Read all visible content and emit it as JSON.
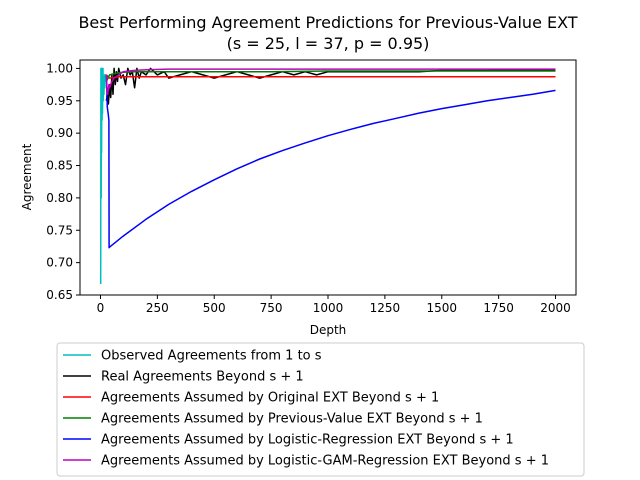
{
  "chart_data": {
    "type": "line",
    "title": "Best Performing Agreement Predictions for Previous-Value EXT",
    "subtitle": "(s = 25, l = 37, p = 0.95)",
    "xlabel": "Depth",
    "ylabel": "Agreement",
    "xlim": [
      -90,
      2090
    ],
    "ylim": [
      0.65,
      1.013
    ],
    "xticks": [
      0,
      250,
      500,
      750,
      1000,
      1250,
      1500,
      1750,
      2000
    ],
    "yticks": [
      0.65,
      0.7,
      0.75,
      0.8,
      0.85,
      0.9,
      0.95,
      1.0
    ],
    "ytick_labels": [
      "0.65",
      "0.70",
      "0.75",
      "0.80",
      "0.85",
      "0.90",
      "0.95",
      "1.00"
    ],
    "grid": false,
    "legend_position": "below",
    "series": [
      {
        "name": "Observed Agreements from 1 to s",
        "color": "#00bfbf",
        "x": [
          1,
          2,
          3,
          4,
          5,
          6,
          7,
          8,
          9,
          10,
          11,
          12,
          13,
          14,
          15,
          16,
          17,
          18,
          19,
          20,
          21,
          22,
          23,
          24,
          25
        ],
        "y": [
          0.667,
          1.0,
          0.8,
          1.0,
          0.87,
          1.0,
          0.92,
          1.0,
          0.93,
          0.97,
          1.0,
          0.95,
          0.97,
          0.98,
          0.96,
          0.97,
          0.98,
          0.99,
          0.97,
          0.98,
          0.99,
          0.98,
          0.99,
          0.985,
          0.99
        ]
      },
      {
        "name": "Real Agreements Beyond s + 1",
        "color": "#000000",
        "x": [
          26,
          30,
          35,
          40,
          45,
          50,
          55,
          60,
          65,
          70,
          75,
          80,
          90,
          100,
          110,
          120,
          130,
          140,
          150,
          160,
          170,
          180,
          200,
          220,
          250,
          280,
          300,
          350,
          400,
          450,
          500,
          550,
          600,
          650,
          700,
          750,
          800,
          850,
          900,
          950,
          1000,
          1100,
          1200,
          1300,
          1400,
          1500,
          1600,
          1700,
          1800,
          1900,
          2000
        ],
        "y": [
          0.95,
          0.96,
          0.945,
          0.975,
          0.955,
          0.99,
          0.96,
          1.0,
          0.975,
          0.995,
          0.98,
          1.0,
          0.985,
          0.99,
          0.975,
          1.0,
          0.99,
          0.995,
          0.97,
          1.0,
          0.985,
          0.995,
          0.99,
          1.0,
          0.99,
          0.995,
          0.985,
          0.99,
          0.995,
          0.99,
          0.985,
          0.99,
          0.995,
          0.99,
          0.985,
          0.99,
          0.995,
          0.99,
          0.995,
          0.99,
          0.995,
          0.995,
          0.995,
          0.995,
          0.995,
          0.997,
          0.997,
          0.997,
          0.998,
          0.998,
          0.998
        ]
      },
      {
        "name": "Agreements Assumed by Original EXT Beyond s + 1",
        "color": "#ff0000",
        "x": [
          26,
          40,
          60,
          80,
          100,
          2000
        ],
        "y": [
          0.99,
          0.985,
          0.986,
          0.987,
          0.987,
          0.987
        ]
      },
      {
        "name": "Agreements Assumed by Previous-Value EXT Beyond s + 1",
        "color": "#008000",
        "x": [
          26,
          40,
          60,
          80,
          100,
          150,
          200,
          300,
          500,
          750,
          1000,
          1250,
          1500,
          1750,
          2000
        ],
        "y": [
          0.98,
          0.99,
          0.992,
          0.993,
          0.994,
          0.995,
          0.995,
          0.995,
          0.995,
          0.995,
          0.996,
          0.996,
          0.996,
          0.996,
          0.996
        ]
      },
      {
        "name": "Agreements Assumed by Logistic-Regression EXT Beyond s + 1",
        "color": "#0000ff",
        "x": [
          26,
          30,
          34,
          37,
          38,
          40,
          100,
          200,
          300,
          400,
          500,
          600,
          700,
          800,
          900,
          1000,
          1100,
          1200,
          1300,
          1400,
          1500,
          1600,
          1700,
          1800,
          1900,
          2000
        ],
        "y": [
          0.99,
          0.94,
          0.93,
          0.92,
          0.723,
          0.724,
          0.741,
          0.767,
          0.79,
          0.81,
          0.828,
          0.845,
          0.86,
          0.873,
          0.885,
          0.896,
          0.906,
          0.915,
          0.923,
          0.931,
          0.938,
          0.944,
          0.95,
          0.955,
          0.96,
          0.966
        ]
      },
      {
        "name": "Agreements Assumed by Logistic-GAM-Regression EXT Beyond s + 1",
        "color": "#bf00bf",
        "x": [
          26,
          30,
          34,
          37,
          40,
          50,
          60,
          80,
          100,
          150,
          200,
          300,
          500,
          1000,
          2000
        ],
        "y": [
          0.99,
          0.96,
          0.965,
          0.975,
          0.97,
          0.98,
          0.985,
          0.99,
          0.995,
          0.997,
          0.998,
          0.999,
          0.999,
          0.999,
          0.999
        ]
      }
    ]
  }
}
